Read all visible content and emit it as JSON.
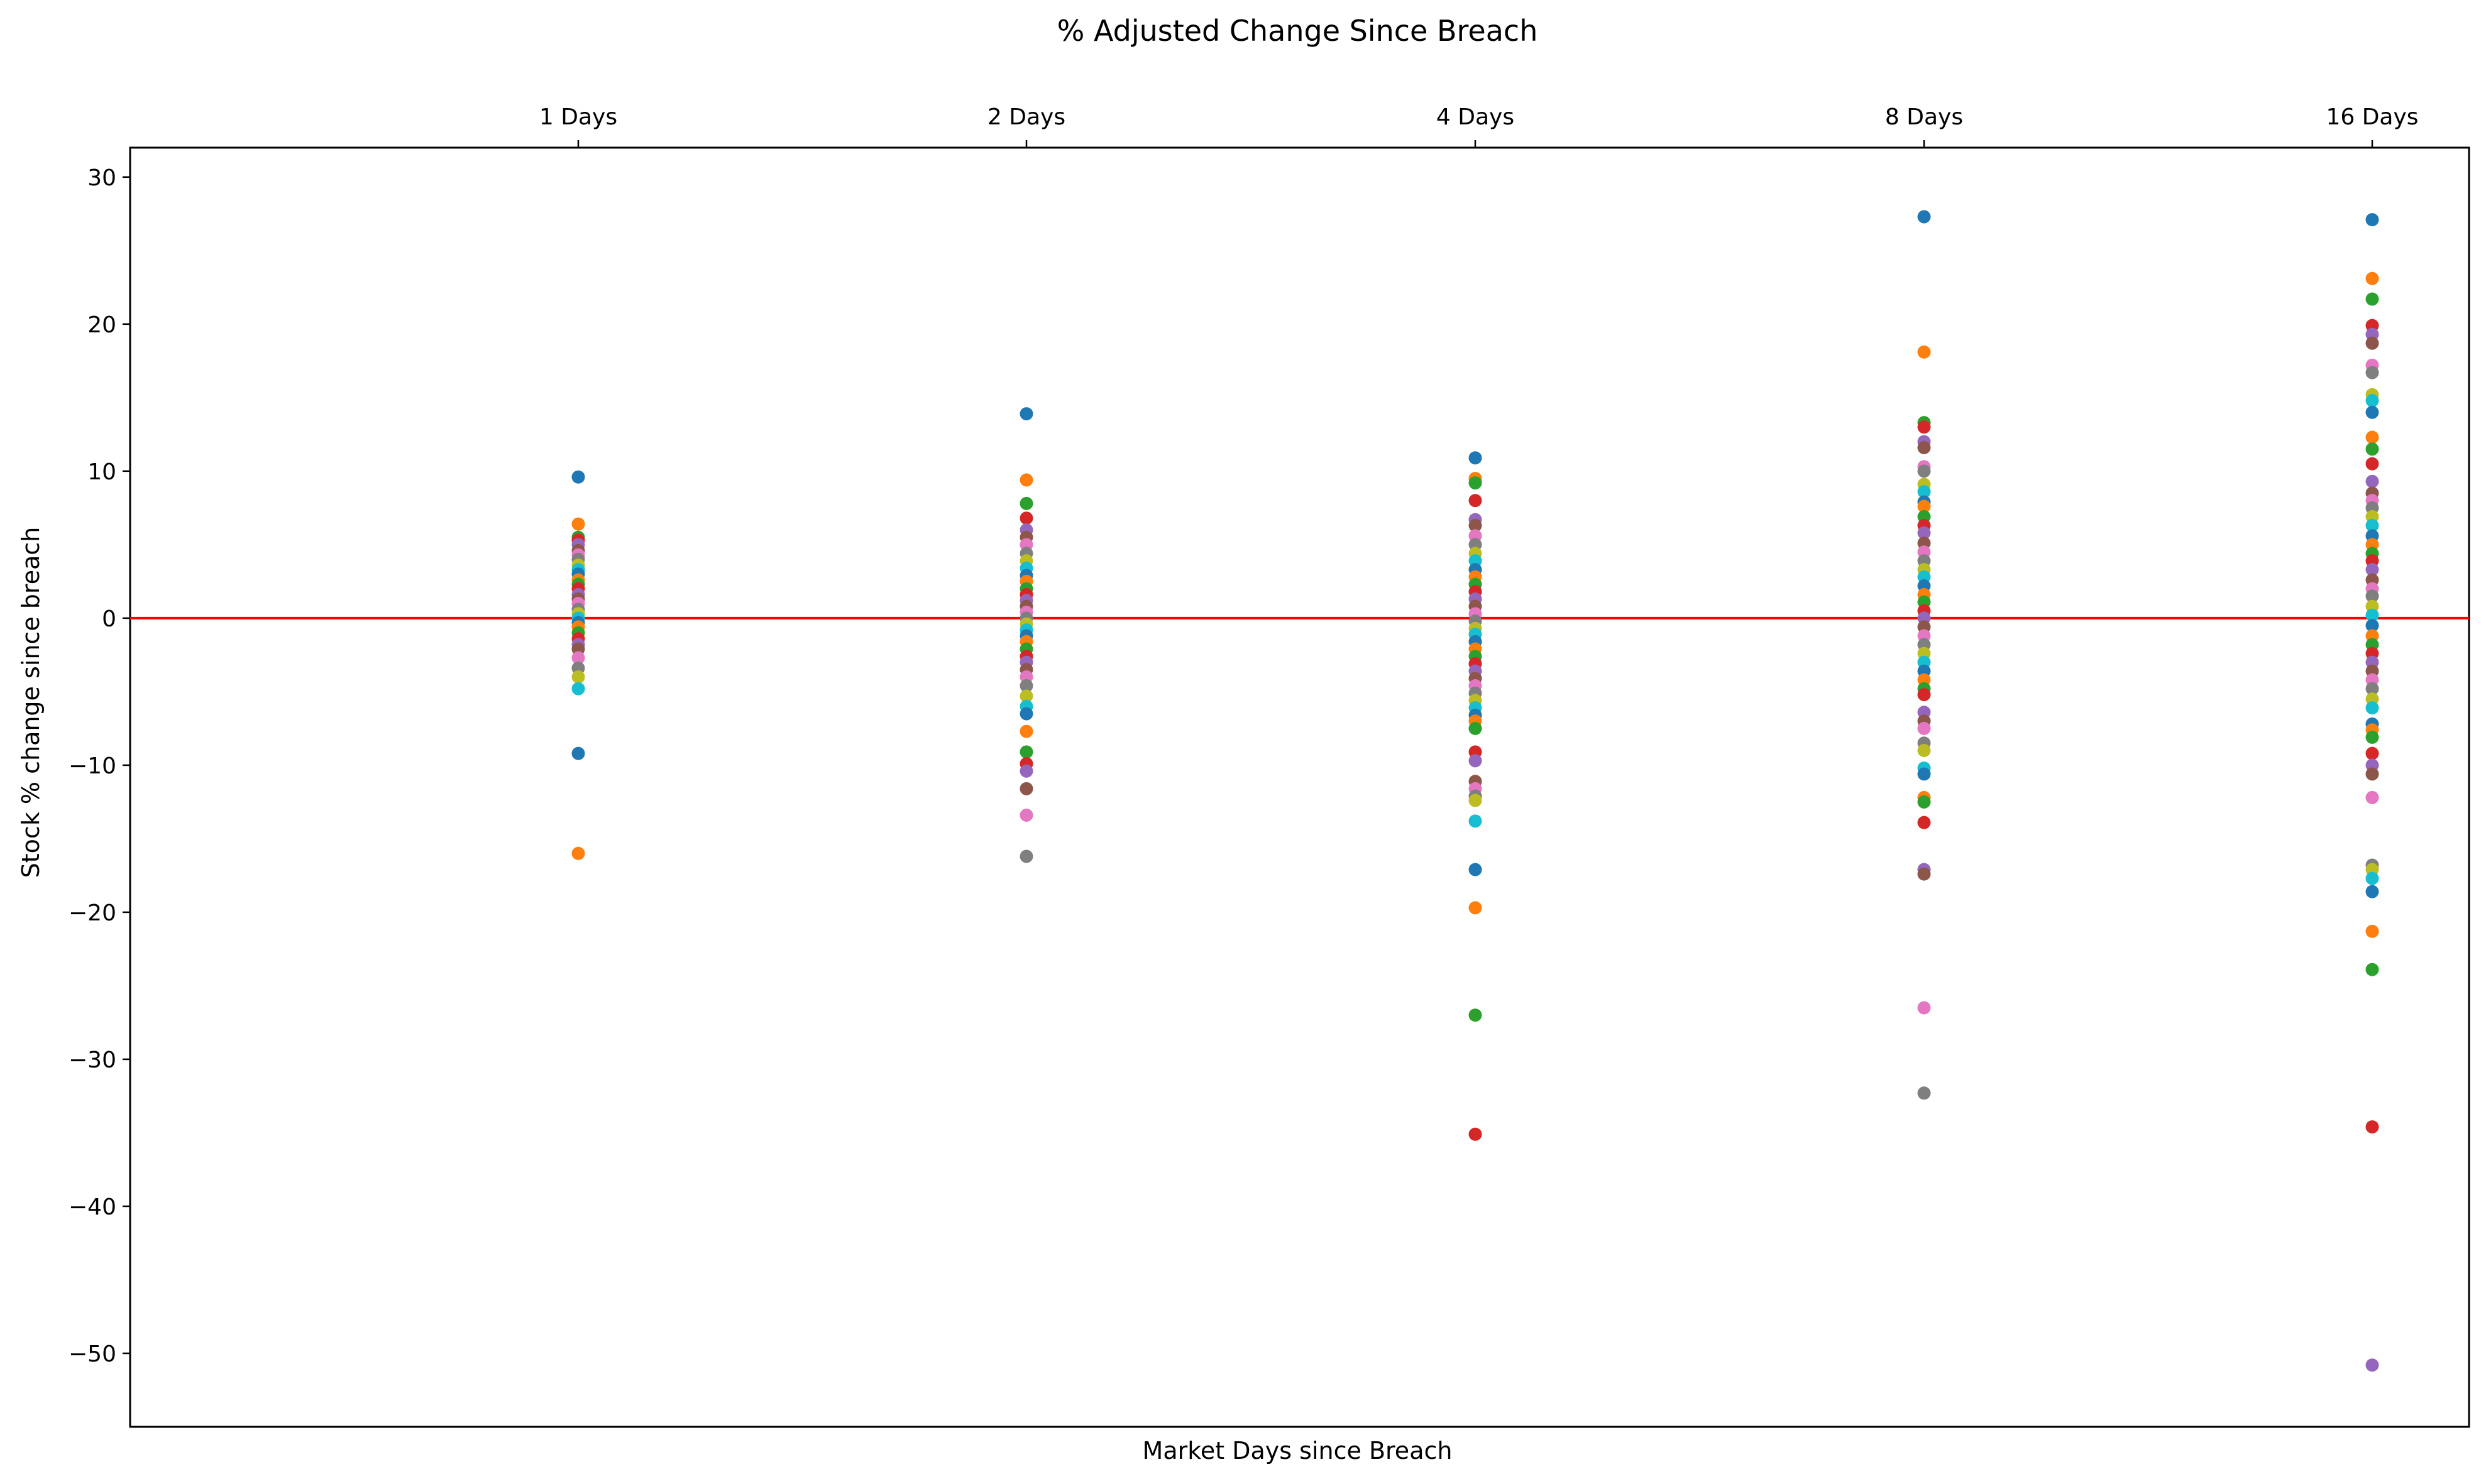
{
  "chart_data": {
    "type": "scatter",
    "title": "% Adjusted Change Since Breach",
    "xlabel": "Market Days since Breach",
    "ylabel": "Stock % change since breach",
    "categories": [
      "1 Days",
      "2 Days",
      "4 Days",
      "8 Days",
      "16 Days"
    ],
    "x_tick_position": "top",
    "ylim": [
      -55,
      32
    ],
    "yticks": [
      30,
      20,
      10,
      0,
      -10,
      -20,
      -30,
      -40,
      -50
    ],
    "ytick_labels": [
      "30",
      "20",
      "10",
      "0",
      "−10",
      "−20",
      "−30",
      "−40",
      "−50"
    ],
    "grid": false,
    "reference_line": {
      "y": 0,
      "color": "#ff0000"
    },
    "palette": [
      "#1f77b4",
      "#ff7f0e",
      "#2ca02c",
      "#d62728",
      "#9467bd",
      "#8c564b",
      "#e377c2",
      "#7f7f7f",
      "#bcbd22",
      "#17becf"
    ],
    "points": [
      {
        "x": "1 Days",
        "values": [
          9.6,
          6.4,
          5.5,
          5.3,
          5.0,
          4.6,
          4.3,
          4.0,
          3.6,
          3.3,
          3.0,
          2.6,
          2.3,
          2.0,
          1.6,
          1.3,
          1.0,
          0.6,
          0.3,
          0.0,
          -0.3,
          -0.6,
          -1.0,
          -1.4,
          -1.8,
          -2.1,
          -2.7,
          -3.4,
          -4.0,
          -4.8,
          -9.2,
          -16.0
        ]
      },
      {
        "x": "2 Days",
        "values": [
          13.9,
          9.4,
          7.8,
          6.8,
          6.0,
          5.5,
          5.0,
          4.4,
          3.9,
          3.4,
          2.9,
          2.5,
          2.0,
          1.6,
          1.2,
          0.8,
          0.4,
          0.0,
          -0.4,
          -0.8,
          -1.2,
          -1.6,
          -2.1,
          -2.6,
          -3.0,
          -3.5,
          -4.0,
          -4.6,
          -5.3,
          -6.0,
          -6.5,
          -7.7,
          -9.1,
          -9.9,
          -10.4,
          -11.6,
          -13.4,
          -16.2
        ]
      },
      {
        "x": "4 Days",
        "values": [
          10.9,
          9.5,
          9.2,
          8.0,
          6.7,
          6.3,
          5.6,
          5.0,
          4.4,
          3.9,
          3.3,
          2.8,
          2.3,
          1.8,
          1.3,
          0.8,
          0.3,
          -0.2,
          -0.7,
          -1.1,
          -1.6,
          -2.1,
          -2.6,
          -3.1,
          -3.6,
          -4.1,
          -4.6,
          -5.1,
          -5.6,
          -6.1,
          -6.6,
          -7.0,
          -7.5,
          -9.1,
          -9.7,
          -11.1,
          -11.6,
          -12.1,
          -12.4,
          -13.8,
          -17.1,
          -19.7,
          -27.0,
          -35.1
        ]
      },
      {
        "x": "8 Days",
        "values": [
          27.3,
          18.1,
          13.3,
          13.0,
          12.0,
          11.6,
          10.3,
          10.0,
          9.1,
          8.6,
          7.9,
          7.6,
          6.9,
          6.3,
          5.8,
          5.1,
          4.5,
          3.9,
          3.3,
          2.8,
          2.2,
          1.6,
          1.1,
          0.5,
          0.0,
          -0.6,
          -1.2,
          -1.8,
          -2.4,
          -3.0,
          -3.6,
          -4.2,
          -4.8,
          -5.2,
          -6.4,
          -7.0,
          -7.5,
          -8.5,
          -9.0,
          -10.2,
          -10.6,
          -12.2,
          -12.5,
          -13.9,
          -17.1,
          -17.4,
          -26.5,
          -32.3
        ]
      },
      {
        "x": "16 Days",
        "values": [
          27.1,
          23.1,
          21.7,
          19.9,
          19.3,
          18.7,
          17.2,
          16.7,
          15.2,
          14.8,
          14.0,
          12.3,
          11.5,
          10.5,
          9.3,
          8.5,
          8.0,
          7.5,
          6.9,
          6.3,
          5.6,
          5.0,
          4.4,
          3.9,
          3.3,
          2.6,
          2.0,
          1.5,
          0.8,
          0.2,
          -0.5,
          -1.2,
          -1.8,
          -2.4,
          -3.0,
          -3.6,
          -4.2,
          -4.8,
          -5.5,
          -6.1,
          -7.2,
          -7.6,
          -8.1,
          -9.2,
          -10.0,
          -10.6,
          -12.2,
          -16.8,
          -17.1,
          -17.7,
          -18.6,
          -21.3,
          -23.9,
          -34.6,
          -50.8
        ]
      }
    ]
  }
}
